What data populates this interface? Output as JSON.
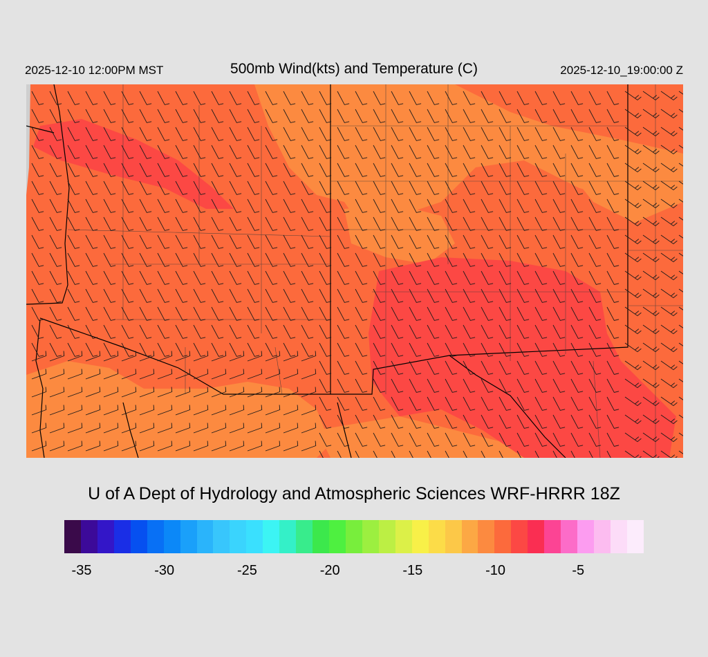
{
  "header": {
    "valid_local": "2025-12-10 12:00PM MST",
    "title": "500mb Wind(kts) and Temperature (C)",
    "valid_utc": "2025-12-10_19:00:00 Z"
  },
  "credit": "U of A Dept of Hydrology and Atmospheric Sciences WRF-HRRR 18Z",
  "colorbar": {
    "colors": [
      "#3a0a4a",
      "#3c0a99",
      "#3316c8",
      "#1a2ee6",
      "#0650f0",
      "#0870f5",
      "#0b88f8",
      "#1aa0fa",
      "#2ab4fb",
      "#38c6fc",
      "#3ad4fd",
      "#3ae0fe",
      "#3cf4f4",
      "#34f0c8",
      "#38ec8c",
      "#3ce84c",
      "#4ef040",
      "#78ee3c",
      "#9cef40",
      "#bcef44",
      "#dcf048",
      "#f8f048",
      "#fcdc48",
      "#fcc848",
      "#fca844",
      "#fc8a40",
      "#fc6a3c",
      "#fc4844",
      "#fa2e52",
      "#fc4494",
      "#fc6cc8",
      "#fc9cf0",
      "#fcbcf0",
      "#fcdcf8",
      "#fcecfc"
    ],
    "tick_labels": [
      "-35",
      "-30",
      "-25",
      "-20",
      "-15",
      "-10",
      "-5"
    ]
  },
  "map": {
    "variable": "500mb temperature (C) with wind barbs (kts)",
    "temperature_colors": {
      "minus_9_to_minus_8": "#fc8a40",
      "minus_8_to_minus_7": "#fc6a3c",
      "minus_7_to_minus_6": "#fc4844"
    },
    "border_color": "#000000",
    "barb_color": "#1a1a1a"
  }
}
